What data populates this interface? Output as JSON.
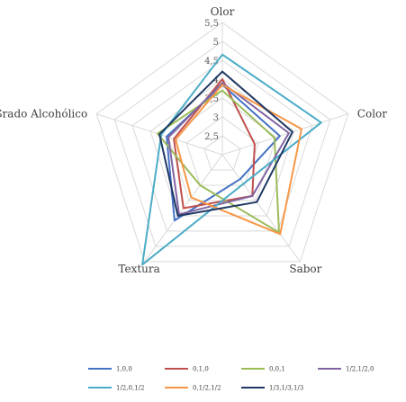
{
  "chart_data": {
    "type": "radar",
    "axes": [
      "Olor",
      "Color",
      "Sabor",
      "Textura",
      "Grado Alcohólico"
    ],
    "rlim": [
      2,
      5.5
    ],
    "ticks": [
      "2,5",
      "3",
      "3,5",
      "4",
      "4,5",
      "5",
      "5,5"
    ],
    "tick_values": [
      2.5,
      3,
      3.5,
      4,
      4.5,
      5,
      5.5
    ],
    "grid": true,
    "legend_position": "bottom",
    "series": [
      {
        "name": "1,0,0",
        "color": "#4472C4",
        "values": [
          3.85,
          3.6,
          2.8,
          4.15,
          3.55
        ]
      },
      {
        "name": "0,1,0",
        "color": "#C0504D",
        "values": [
          4.0,
          2.9,
          3.35,
          3.75,
          3.35
        ]
      },
      {
        "name": "0,0,1",
        "color": "#9BBB59",
        "values": [
          3.7,
          3.45,
          4.55,
          3.0,
          3.8
        ]
      },
      {
        "name": "1/2,1/2,0",
        "color": "#8064A2",
        "values": [
          3.9,
          3.85,
          3.35,
          3.95,
          3.5
        ]
      },
      {
        "name": "1/2,0,1/2",
        "color": "#4BACC6",
        "values": [
          4.65,
          4.75,
          2.95,
          5.6,
          3.7
        ]
      },
      {
        "name": "0,1/2,1/2",
        "color": "#F79646",
        "values": [
          3.85,
          4.2,
          4.6,
          3.4,
          3.3
        ]
      },
      {
        "name": "1/3,1/3,1/3",
        "color": "#1F3864",
        "values": [
          4.2,
          3.95,
          3.55,
          4.0,
          3.75
        ]
      }
    ]
  }
}
